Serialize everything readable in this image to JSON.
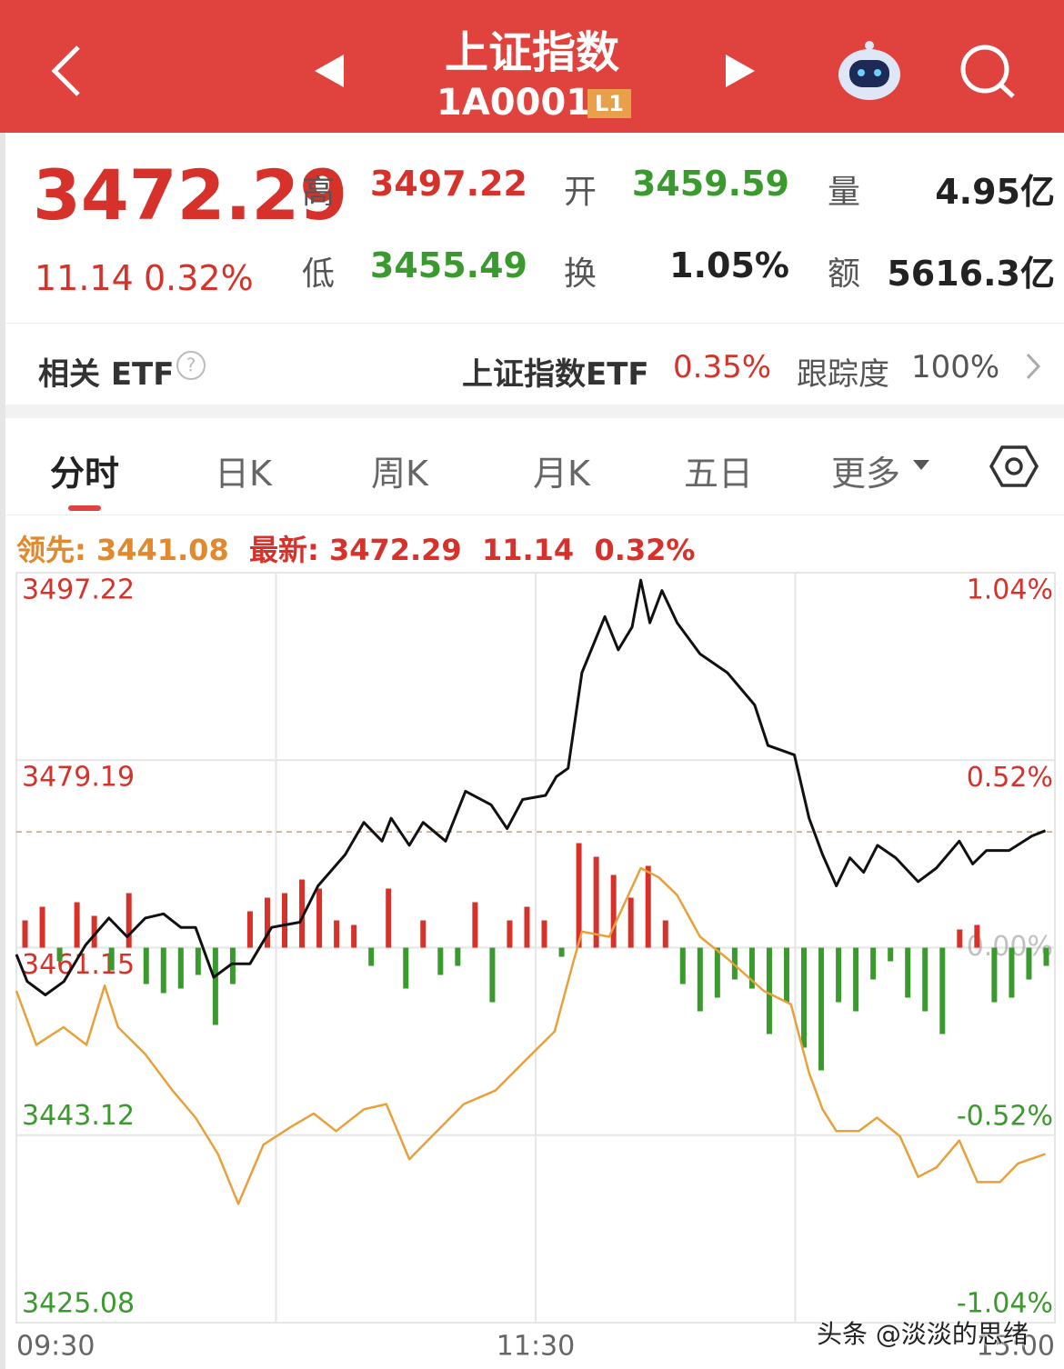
{
  "header": {
    "title": "上证指数",
    "code": "1A0001",
    "badge": "L1"
  },
  "quote": {
    "price": "3472.29",
    "change": "11.14",
    "change_pct": "0.32%",
    "fields": [
      {
        "label": "高",
        "value": "3497.22",
        "color": "#d6322b"
      },
      {
        "label": "开",
        "value": "3459.59",
        "color": "#3a9a2e"
      },
      {
        "label": "量",
        "value": "4.95亿",
        "color": "#222222"
      },
      {
        "label": "低",
        "value": "3455.49",
        "color": "#3a9a2e"
      },
      {
        "label": "换",
        "value": "1.05%",
        "color": "#222222"
      },
      {
        "label": "额",
        "value": "5616.3亿",
        "color": "#222222"
      }
    ]
  },
  "etf": {
    "label": "相关 ETF",
    "name": "上证指数ETF",
    "change": "0.35%",
    "tracking_label": "跟踪度",
    "tracking": "100%"
  },
  "tabs": [
    "分时",
    "日K",
    "周K",
    "月K",
    "五日",
    "更多"
  ],
  "info": {
    "leading_label": "领先:",
    "leading": "3441.08",
    "latest_label": "最新:",
    "latest": "3472.29",
    "change": "11.14",
    "change_pct": "0.32%"
  },
  "chart_data": {
    "type": "line",
    "ylim": [
      3425.08,
      3497.22
    ],
    "yticks": [
      3497.22,
      3479.19,
      3461.15,
      3443.12,
      3425.08
    ],
    "y2lim": [
      -1.04,
      1.04
    ],
    "y2ticks": [
      {
        "value": 1.04,
        "label": "1.04%"
      },
      {
        "value": 0.52,
        "label": "0.52%"
      },
      {
        "value": 0,
        "label": "0.00%"
      },
      {
        "value": -0.52,
        "label": "-0.52%"
      },
      {
        "value": -1.04,
        "label": "-1.04%"
      }
    ],
    "xlim": [
      0,
      240
    ],
    "xticks": [
      {
        "value": 0,
        "label": "09:30"
      },
      {
        "value": 60
      },
      {
        "value": 120,
        "label": "11:30"
      },
      {
        "value": 180
      },
      {
        "value": 240,
        "label": "15:00"
      }
    ],
    "grid": true,
    "up_color": "#d6322b",
    "down_color": "#3a9a2e",
    "flat_color": "#999999",
    "reference_line": 3472.29,
    "series": [
      {
        "color": "#111111",
        "x": [
          0,
          2.5,
          6.7,
          11,
          16,
          21.4,
          25.6,
          29.8,
          34,
          38,
          41.4,
          45.6,
          49.8,
          54,
          59,
          65.5,
          69.7,
          76,
          80.3,
          84.5,
          86.6,
          90.8,
          94,
          99.2,
          103.8,
          109.7,
          113.4,
          117,
          122.3,
          124.8,
          127.5,
          130.7,
          136,
          139.1,
          142.3,
          144.3,
          146.4,
          149.2,
          152.7,
          158,
          164.3,
          170.6,
          173.7,
          179.8,
          183.2,
          186.3,
          189.5,
          192.6,
          195.8,
          199,
          203.2,
          208.4,
          212.6,
          217.9,
          221,
          224.2,
          229.4,
          234.7,
          237.8
        ],
        "values": [
          3460.5,
          3457.9,
          3456.6,
          3457.9,
          3461.4,
          3464.0,
          3462.2,
          3464.0,
          3464.4,
          3463.1,
          3463.1,
          3458.3,
          3459.6,
          3459.6,
          3463.1,
          3463.6,
          3467.1,
          3470.1,
          3473.2,
          3471.4,
          3473.6,
          3471.0,
          3473.2,
          3471.4,
          3476.2,
          3474.9,
          3472.6,
          3475.4,
          3475.8,
          3477.6,
          3478.4,
          3487.6,
          3493.0,
          3489.8,
          3492.0,
          3496.5,
          3492.4,
          3495.5,
          3492.4,
          3489.4,
          3487.6,
          3484.5,
          3480.6,
          3479.7,
          3473.6,
          3470.1,
          3467.1,
          3469.8,
          3468.4,
          3471.0,
          3469.8,
          3467.5,
          3468.8,
          3471.4,
          3469.2,
          3470.5,
          3470.5,
          3471.9,
          3472.4
        ]
      },
      {
        "color": "#e8a13a",
        "x": [
          0,
          4.6,
          10.9,
          16.2,
          20.4,
          23.5,
          29.8,
          36.1,
          41.4,
          46.6,
          51.3,
          57.1,
          63.4,
          68.7,
          73.9,
          80.3,
          85.5,
          90.8,
          96,
          103.4,
          110.7,
          118.1,
          124.4,
          128.6,
          130.7,
          137,
          144.3,
          148.5,
          152.7,
          158,
          164.3,
          172.7,
          179,
          183.2,
          186.3,
          189.5,
          194.7,
          198.9,
          204.2,
          208.4,
          212.6,
          217.9,
          222.1,
          227.3,
          231.5,
          237.8
        ],
        "values": [
          3457.0,
          3451.8,
          3453.5,
          3451.8,
          3457.5,
          3453.5,
          3450.9,
          3447.4,
          3444.8,
          3441.3,
          3436.5,
          3442.2,
          3443.9,
          3445.2,
          3443.5,
          3445.6,
          3446.1,
          3440.8,
          3443.0,
          3446.1,
          3447.4,
          3450.5,
          3453.1,
          3459.6,
          3462.7,
          3462.2,
          3468.8,
          3467.9,
          3466.2,
          3462.2,
          3460.1,
          3457.0,
          3455.7,
          3449.1,
          3445.6,
          3443.5,
          3443.5,
          3444.8,
          3443.0,
          3439.1,
          3440.0,
          3442.6,
          3438.6,
          3438.6,
          3440.4,
          3441.3
        ]
      }
    ],
    "bars": {
      "x": [
        2,
        6,
        10,
        14,
        18,
        22,
        26,
        30,
        34,
        38,
        42,
        46,
        50,
        54,
        58,
        62,
        66,
        70,
        74,
        78,
        82,
        86,
        90,
        94,
        98,
        102,
        106,
        110,
        114,
        118,
        122,
        126,
        130,
        134,
        138,
        142,
        146,
        150,
        154,
        158,
        162,
        166,
        170,
        174,
        178,
        182,
        186,
        190,
        194,
        198,
        202,
        206,
        210,
        214,
        218,
        222,
        226,
        230,
        234,
        238
      ],
      "values": [
        30,
        45,
        -15,
        50,
        35,
        -25,
        60,
        -40,
        -50,
        -45,
        -30,
        -85,
        -40,
        40,
        55,
        60,
        75,
        65,
        30,
        25,
        -20,
        65,
        -45,
        30,
        -30,
        -20,
        50,
        -60,
        30,
        45,
        30,
        -10,
        115,
        100,
        80,
        55,
        90,
        30,
        -40,
        -70,
        -55,
        -35,
        -45,
        -95,
        -60,
        -110,
        -135,
        -60,
        -70,
        -35,
        -15,
        -55,
        -70,
        -95,
        20,
        25,
        -60,
        -55,
        -35,
        -20
      ]
    }
  },
  "watermark": "头条 @淡淡的思绪"
}
